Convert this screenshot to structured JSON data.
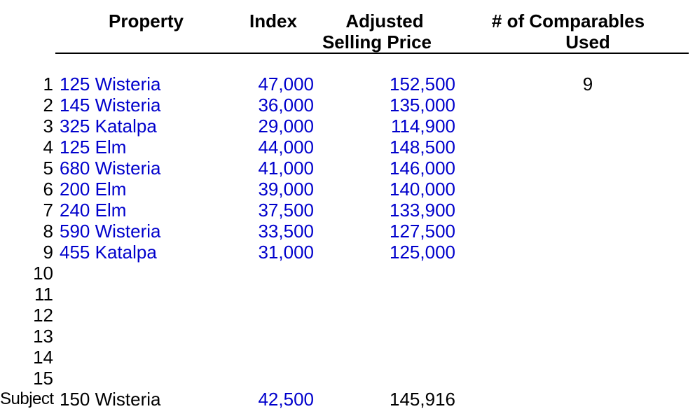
{
  "colors": {
    "value_blue": "#0000CC",
    "text_black": "#000000",
    "divider_black": "#000000",
    "background": "#FFFFFF"
  },
  "table": {
    "columns": {
      "row_label": "",
      "property": "Property",
      "index": "Index",
      "adjusted": [
        "Adjusted",
        "Selling Price"
      ],
      "comparables": [
        "# of Comparables",
        "Used"
      ]
    },
    "rows": [
      {
        "label": "1",
        "property": "125 Wisteria",
        "index": "47,000",
        "price": "152,500",
        "comparables": "9"
      },
      {
        "label": "2",
        "property": "145 Wisteria",
        "index": "36,000",
        "price": "135,000",
        "comparables": ""
      },
      {
        "label": "3",
        "property": "325 Katalpa",
        "index": "29,000",
        "price": "114,900",
        "comparables": ""
      },
      {
        "label": "4",
        "property": "125 Elm",
        "index": "44,000",
        "price": "148,500",
        "comparables": ""
      },
      {
        "label": "5",
        "property": "680 Wisteria",
        "index": "41,000",
        "price": "146,000",
        "comparables": ""
      },
      {
        "label": "6",
        "property": "200 Elm",
        "index": "39,000",
        "price": "140,000",
        "comparables": ""
      },
      {
        "label": "7",
        "property": "240 Elm",
        "index": "37,500",
        "price": "133,900",
        "comparables": ""
      },
      {
        "label": "8",
        "property": "590 Wisteria",
        "index": "33,500",
        "price": "127,500",
        "comparables": ""
      },
      {
        "label": "9",
        "property": "455 Katalpa",
        "index": "31,000",
        "price": "125,000",
        "comparables": ""
      },
      {
        "label": "10",
        "property": "",
        "index": "",
        "price": "",
        "comparables": ""
      },
      {
        "label": "11",
        "property": "",
        "index": "",
        "price": "",
        "comparables": ""
      },
      {
        "label": "12",
        "property": "",
        "index": "",
        "price": "",
        "comparables": ""
      },
      {
        "label": "13",
        "property": "",
        "index": "",
        "price": "",
        "comparables": ""
      },
      {
        "label": "14",
        "property": "",
        "index": "",
        "price": "",
        "comparables": ""
      },
      {
        "label": "15",
        "property": "",
        "index": "",
        "price": "",
        "comparables": ""
      },
      {
        "label": "Subject",
        "property": "150 Wisteria",
        "index": "42,500",
        "price": "145,916",
        "comparables": "",
        "subject": true
      }
    ]
  }
}
